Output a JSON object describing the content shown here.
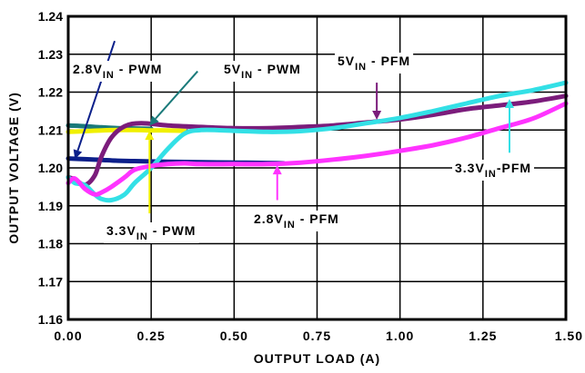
{
  "chart_data": {
    "type": "line",
    "title": "",
    "xlabel": "OUTPUT LOAD (A)",
    "ylabel": "OUTPUT VOLTAGE (V)",
    "xlim": [
      0,
      1.5
    ],
    "ylim": [
      1.16,
      1.24
    ],
    "grid": true,
    "x_ticks": [
      0,
      0.25,
      0.5,
      0.75,
      1.0,
      1.25,
      1.5
    ],
    "x_tick_labels": [
      "0.00",
      "0.25",
      "0.50",
      "0.75",
      "1.00",
      "1.25",
      "1.50"
    ],
    "y_ticks": [
      1.16,
      1.17,
      1.18,
      1.19,
      1.2,
      1.21,
      1.22,
      1.23,
      1.24
    ],
    "y_tick_labels": [
      "1.16",
      "1.17",
      "1.18",
      "1.19",
      "1.20",
      "1.21",
      "1.22",
      "1.23",
      "1.24"
    ],
    "series": [
      {
        "key": "s28pwm",
        "color": "#0b1f8a",
        "x": [
          0,
          0.05,
          0.1,
          0.15,
          0.2,
          0.3,
          0.4,
          0.5,
          0.6,
          0.65
        ],
        "y": [
          1.2025,
          1.2023,
          1.2021,
          1.2019,
          1.2018,
          1.2016,
          1.2015,
          1.2014,
          1.2013,
          1.2012
        ]
      },
      {
        "key": "s5pwm",
        "color": "#1a7a7a",
        "x": [
          0,
          0.05,
          0.1,
          0.15,
          0.2,
          0.25
        ],
        "y": [
          1.2112,
          1.211,
          1.2107,
          1.2105,
          1.2104,
          1.2103
        ]
      },
      {
        "key": "s33pwm",
        "color": "#f0f000",
        "x": [
          0,
          0.05,
          0.1,
          0.15,
          0.2,
          0.25,
          0.3,
          0.35
        ],
        "y": [
          1.2095,
          1.2097,
          1.2099,
          1.21,
          1.21,
          1.2099,
          1.2099,
          1.2098
        ]
      },
      {
        "key": "s5pfm",
        "color": "#7b1c7b",
        "x": [
          0,
          0.02,
          0.05,
          0.08,
          0.1,
          0.13,
          0.17,
          0.22,
          0.3,
          0.4,
          0.5,
          0.6,
          0.7,
          0.8,
          0.9,
          1.0,
          1.1,
          1.2,
          1.3,
          1.4,
          1.5
        ],
        "y": [
          1.1975,
          1.197,
          1.1955,
          1.198,
          1.203,
          1.208,
          1.211,
          1.2118,
          1.2112,
          1.2108,
          1.2105,
          1.2105,
          1.2108,
          1.2112,
          1.212,
          1.2128,
          1.214,
          1.2155,
          1.2165,
          1.2175,
          1.219
        ]
      },
      {
        "key": "s33pfm",
        "color": "#33e0e6",
        "x": [
          0,
          0.02,
          0.05,
          0.08,
          0.1,
          0.13,
          0.17,
          0.2,
          0.25,
          0.3,
          0.35,
          0.4,
          0.5,
          0.6,
          0.7,
          0.8,
          0.9,
          1.0,
          1.1,
          1.2,
          1.3,
          1.4,
          1.5
        ],
        "y": [
          1.1975,
          1.196,
          1.1955,
          1.193,
          1.1918,
          1.1915,
          1.193,
          1.196,
          1.2,
          1.205,
          1.209,
          1.21,
          1.2098,
          1.2095,
          1.2097,
          1.2105,
          1.2118,
          1.2132,
          1.215,
          1.217,
          1.219,
          1.2205,
          1.2225
        ]
      },
      {
        "key": "s28pfm",
        "color": "#ff33ff",
        "x": [
          0,
          0.02,
          0.05,
          0.08,
          0.1,
          0.13,
          0.17,
          0.2,
          0.25,
          0.3,
          0.35,
          0.4,
          0.5,
          0.6,
          0.7,
          0.8,
          0.9,
          1.0,
          1.1,
          1.2,
          1.3,
          1.4,
          1.5
        ],
        "y": [
          1.196,
          1.1972,
          1.1945,
          1.193,
          1.1935,
          1.195,
          1.1975,
          1.1995,
          1.2005,
          1.201,
          1.2012,
          1.201,
          1.201,
          1.201,
          1.2014,
          1.2022,
          1.2032,
          1.2045,
          1.206,
          1.208,
          1.2105,
          1.213,
          1.217
        ]
      }
    ],
    "annotations": [
      {
        "name": "label-2v8-pwm",
        "parts": [
          {
            "t": "2.8V"
          },
          {
            "t": "IN",
            "sub": true
          },
          {
            "t": " - PWM"
          }
        ],
        "arrow_color": "#0b1f8a",
        "arrow_from": [
          0.14,
          1.2335
        ],
        "arrow_to": [
          0.02,
          1.2023
        ]
      },
      {
        "name": "label-5v-pwm",
        "parts": [
          {
            "t": "5V"
          },
          {
            "t": "IN",
            "sub": true
          },
          {
            "t": " - PWM"
          }
        ],
        "arrow_color": "#1a7a7a",
        "arrow_from": [
          0.39,
          1.2255
        ],
        "arrow_to": [
          0.245,
          1.2112
        ]
      },
      {
        "name": "label-5v-pfm",
        "parts": [
          {
            "t": "5V"
          },
          {
            "t": "IN",
            "sub": true
          },
          {
            "t": " - PFM"
          }
        ],
        "arrow_color": "#7b1c7b",
        "arrow_from": [
          0.93,
          1.2225
        ],
        "arrow_to": [
          0.93,
          1.2127
        ]
      },
      {
        "name": "label-3v3-pwm",
        "parts": [
          {
            "t": "3.3V"
          },
          {
            "t": "IN",
            "sub": true
          },
          {
            "t": " - PWM"
          }
        ],
        "arrow_color": "#f0f000",
        "arrow_from": [
          0.245,
          1.188
        ],
        "arrow_to": [
          0.245,
          1.2098
        ]
      },
      {
        "name": "label-2v8-pfm",
        "parts": [
          {
            "t": "2.8V"
          },
          {
            "t": "IN",
            "sub": true
          },
          {
            "t": " - PFM"
          }
        ],
        "arrow_color": "#ff33ff",
        "arrow_from": [
          0.63,
          1.1915
        ],
        "arrow_to": [
          0.63,
          1.2007
        ]
      },
      {
        "name": "label-3v3-pfm",
        "parts": [
          {
            "t": "3.3V"
          },
          {
            "t": "IN",
            "sub": true
          },
          {
            "t": "-PFM"
          }
        ],
        "arrow_color": "#33e0e6",
        "arrow_from": [
          1.33,
          1.204
        ],
        "arrow_to": [
          1.33,
          1.2182
        ]
      }
    ]
  }
}
